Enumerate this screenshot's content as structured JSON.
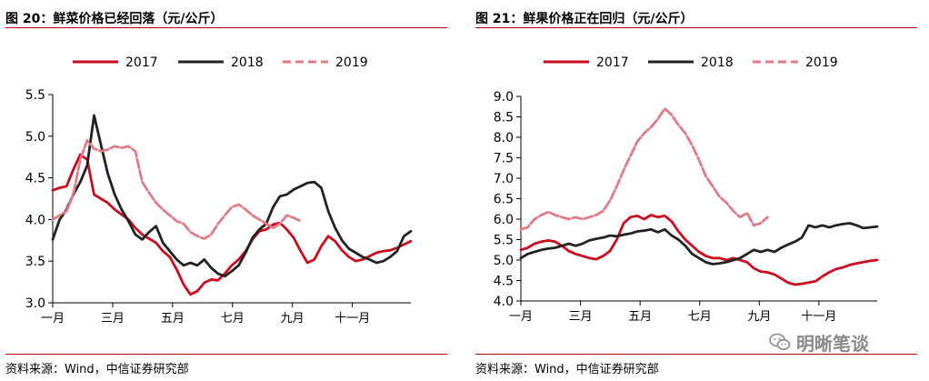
{
  "charts": [
    {
      "figure_title": "图 20：鲜菜价格已经回落（元/公斤）",
      "source": "资料来源：Wind，中信证券研究部",
      "chart_data": {
        "type": "line",
        "title": "鲜菜价格已经回落（元/公斤）",
        "xlabel": "",
        "ylabel": "",
        "x_range": [
          1,
          53
        ],
        "ylim": [
          3.0,
          5.5
        ],
        "yticks": [
          "5.5",
          "5.0",
          "4.5",
          "4.0",
          "3.5",
          "3.0"
        ],
        "ytick_values": [
          5.5,
          5.0,
          4.5,
          4.0,
          3.5,
          3.0
        ],
        "xticks": [
          "一月",
          "三月",
          "五月",
          "七月",
          "九月",
          "十一月"
        ],
        "xtick_positions": [
          1,
          9.7,
          18.4,
          27.1,
          35.8,
          44.5
        ],
        "grid": false,
        "legend_position": "top-center",
        "series": [
          {
            "name": "2017",
            "color": "#cc0a1e",
            "dash": "solid",
            "x": [
              1,
              2,
              3,
              4,
              5,
              6,
              7,
              8,
              9,
              10,
              11,
              12,
              13,
              14,
              15,
              16,
              17,
              18,
              19,
              20,
              21,
              22,
              23,
              24,
              25,
              26,
              27,
              28,
              29,
              30,
              31,
              32,
              33,
              34,
              35,
              36,
              37,
              38,
              39,
              40,
              41,
              42,
              43,
              44,
              45,
              46,
              47,
              48,
              49,
              50,
              51,
              52,
              53
            ],
            "values": [
              4.35,
              4.38,
              4.4,
              4.6,
              4.78,
              4.72,
              4.3,
              4.25,
              4.2,
              4.12,
              4.06,
              4.0,
              3.9,
              3.82,
              3.77,
              3.72,
              3.62,
              3.55,
              3.4,
              3.22,
              3.1,
              3.14,
              3.24,
              3.28,
              3.27,
              3.35,
              3.45,
              3.52,
              3.62,
              3.76,
              3.86,
              3.88,
              3.94,
              3.96,
              3.88,
              3.78,
              3.62,
              3.48,
              3.52,
              3.68,
              3.8,
              3.74,
              3.63,
              3.55,
              3.5,
              3.52,
              3.56,
              3.6,
              3.62,
              3.63,
              3.66,
              3.7,
              3.74
            ]
          },
          {
            "name": "2018",
            "color": "#222222",
            "dash": "solid",
            "x": [
              1,
              2,
              3,
              4,
              5,
              6,
              7,
              8,
              9,
              10,
              11,
              12,
              13,
              14,
              15,
              16,
              17,
              18,
              19,
              20,
              21,
              22,
              23,
              24,
              25,
              26,
              27,
              28,
              29,
              30,
              31,
              32,
              33,
              34,
              35,
              36,
              37,
              38,
              39,
              40,
              41,
              42,
              43,
              44,
              45,
              46,
              47,
              48,
              49,
              50,
              51,
              52,
              53
            ],
            "values": [
              3.76,
              4.0,
              4.12,
              4.3,
              4.45,
              4.65,
              5.25,
              4.9,
              4.55,
              4.3,
              4.12,
              3.98,
              3.82,
              3.76,
              3.85,
              3.92,
              3.72,
              3.62,
              3.52,
              3.45,
              3.48,
              3.45,
              3.52,
              3.42,
              3.35,
              3.32,
              3.38,
              3.45,
              3.6,
              3.78,
              3.88,
              3.95,
              4.15,
              4.28,
              4.3,
              4.36,
              4.4,
              4.44,
              4.45,
              4.38,
              4.1,
              3.9,
              3.75,
              3.65,
              3.6,
              3.55,
              3.52,
              3.48,
              3.5,
              3.55,
              3.62,
              3.8,
              3.86
            ]
          },
          {
            "name": "2019",
            "color": "#e07a86",
            "dash": "dashed",
            "x": [
              1,
              2,
              3,
              4,
              5,
              6,
              7,
              8,
              9,
              10,
              11,
              12,
              13,
              14,
              15,
              16,
              17,
              18,
              19,
              20,
              21,
              22,
              23,
              24,
              25,
              26,
              27,
              28,
              29,
              30,
              31,
              32,
              33,
              34,
              35,
              36,
              37
            ],
            "values": [
              4.0,
              4.05,
              4.1,
              4.3,
              4.72,
              4.95,
              4.85,
              4.82,
              4.84,
              4.88,
              4.86,
              4.88,
              4.82,
              4.45,
              4.32,
              4.2,
              4.12,
              4.05,
              3.98,
              3.95,
              3.85,
              3.8,
              3.77,
              3.82,
              3.95,
              4.05,
              4.15,
              4.18,
              4.12,
              4.05,
              4.0,
              3.95,
              3.9,
              3.95,
              4.05,
              4.02,
              3.98
            ]
          }
        ]
      }
    },
    {
      "figure_title": "图 21：鲜果价格正在回归（元/公斤）",
      "source": "资料来源：Wind，中信证券研究部",
      "chart_data": {
        "type": "line",
        "title": "鲜果价格正在回归（元/公斤）",
        "xlabel": "",
        "ylabel": "",
        "x_range": [
          1,
          53
        ],
        "ylim": [
          4.0,
          9.0
        ],
        "yticks": [
          "9.0",
          "8.5",
          "8.0",
          "7.5",
          "7.0",
          "6.5",
          "6.0",
          "5.5",
          "5.0",
          "4.5",
          "4.0"
        ],
        "ytick_values": [
          9.0,
          8.5,
          8.0,
          7.5,
          7.0,
          6.5,
          6.0,
          5.5,
          5.0,
          4.5,
          4.0
        ],
        "xticks": [
          "一月",
          "三月",
          "五月",
          "七月",
          "九月",
          "十一月"
        ],
        "xtick_positions": [
          1,
          9.7,
          18.4,
          27.1,
          35.8,
          44.5
        ],
        "grid": false,
        "legend_position": "top-center",
        "series": [
          {
            "name": "2017",
            "color": "#cc0a1e",
            "dash": "solid",
            "x": [
              1,
              2,
              3,
              4,
              5,
              6,
              7,
              8,
              9,
              10,
              11,
              12,
              13,
              14,
              15,
              16,
              17,
              18,
              19,
              20,
              21,
              22,
              23,
              24,
              25,
              26,
              27,
              28,
              29,
              30,
              31,
              32,
              33,
              34,
              35,
              36,
              37,
              38,
              39,
              40,
              41,
              42,
              43,
              44,
              45,
              46,
              47,
              48,
              49,
              50,
              51,
              52,
              53
            ],
            "values": [
              5.25,
              5.3,
              5.4,
              5.45,
              5.48,
              5.45,
              5.35,
              5.22,
              5.15,
              5.1,
              5.05,
              5.02,
              5.1,
              5.22,
              5.5,
              5.9,
              6.05,
              6.08,
              6.0,
              6.1,
              6.05,
              6.08,
              5.95,
              5.7,
              5.5,
              5.35,
              5.2,
              5.1,
              5.05,
              5.05,
              5.0,
              5.05,
              5.0,
              4.95,
              4.8,
              4.72,
              4.7,
              4.65,
              4.55,
              4.45,
              4.4,
              4.42,
              4.45,
              4.48,
              4.6,
              4.7,
              4.78,
              4.82,
              4.88,
              4.92,
              4.95,
              4.98,
              5.0
            ]
          },
          {
            "name": "2018",
            "color": "#222222",
            "dash": "solid",
            "x": [
              1,
              2,
              3,
              4,
              5,
              6,
              7,
              8,
              9,
              10,
              11,
              12,
              13,
              14,
              15,
              16,
              17,
              18,
              19,
              20,
              21,
              22,
              23,
              24,
              25,
              26,
              27,
              28,
              29,
              30,
              31,
              32,
              33,
              34,
              35,
              36,
              37,
              38,
              39,
              40,
              41,
              42,
              43,
              44,
              45,
              46,
              47,
              48,
              49,
              50,
              51,
              52,
              53
            ],
            "values": [
              5.05,
              5.15,
              5.2,
              5.25,
              5.28,
              5.3,
              5.35,
              5.4,
              5.35,
              5.4,
              5.48,
              5.52,
              5.55,
              5.6,
              5.58,
              5.62,
              5.65,
              5.7,
              5.72,
              5.75,
              5.68,
              5.75,
              5.6,
              5.5,
              5.35,
              5.15,
              5.05,
              4.95,
              4.9,
              4.92,
              4.95,
              5.0,
              5.05,
              5.15,
              5.25,
              5.2,
              5.25,
              5.2,
              5.3,
              5.38,
              5.45,
              5.55,
              5.85,
              5.8,
              5.85,
              5.8,
              5.85,
              5.88,
              5.9,
              5.85,
              5.78,
              5.8,
              5.82
            ]
          },
          {
            "name": "2019",
            "color": "#e07a86",
            "dash": "dashed",
            "x": [
              1,
              2,
              3,
              4,
              5,
              6,
              7,
              8,
              9,
              10,
              11,
              12,
              13,
              14,
              15,
              16,
              17,
              18,
              19,
              20,
              21,
              22,
              23,
              24,
              25,
              26,
              27,
              28,
              29,
              30,
              31,
              32,
              33,
              34,
              35,
              36,
              37
            ],
            "values": [
              5.75,
              5.8,
              6.0,
              6.1,
              6.18,
              6.1,
              6.05,
              6.0,
              6.05,
              6.0,
              6.05,
              6.1,
              6.2,
              6.45,
              6.8,
              7.2,
              7.55,
              7.9,
              8.1,
              8.25,
              8.45,
              8.7,
              8.55,
              8.3,
              8.1,
              7.8,
              7.45,
              7.05,
              6.8,
              6.55,
              6.4,
              6.2,
              6.05,
              6.15,
              5.85,
              5.9,
              6.05
            ]
          }
        ]
      }
    }
  ],
  "watermark": {
    "text": "明晰笔谈",
    "icon": "wechat-icon"
  }
}
